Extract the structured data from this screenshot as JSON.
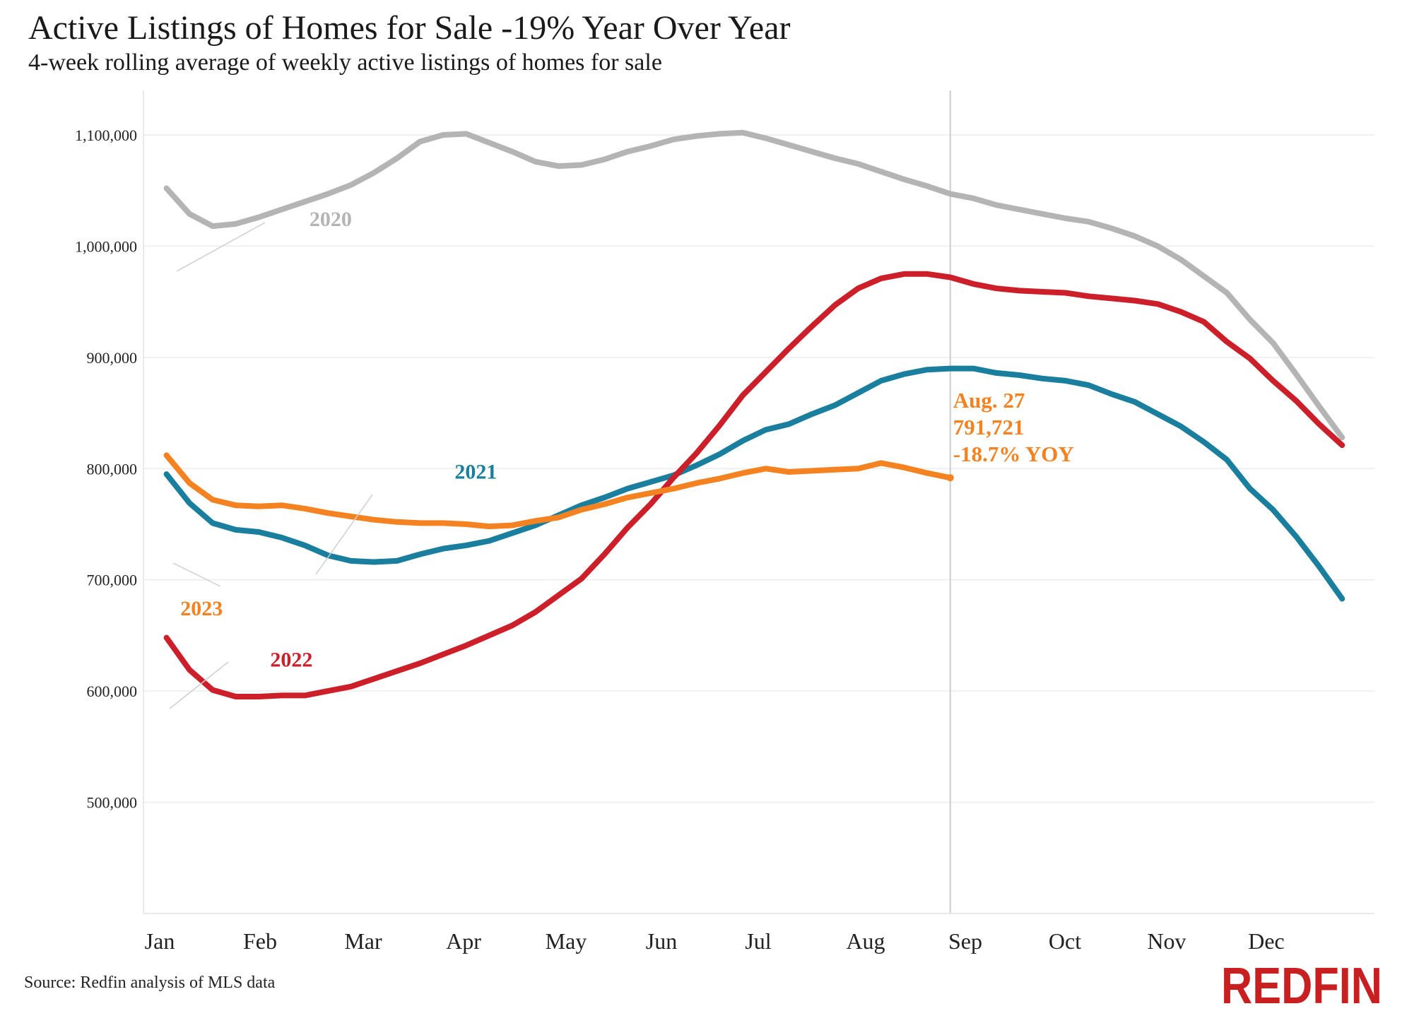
{
  "title": "Active Listings of Homes for Sale -19% Year Over Year",
  "subtitle": "4-week rolling average of weekly active listings of homes for sale",
  "source": "Source: Redfin analysis of MLS data",
  "logo": "REDFIN",
  "chart_data": {
    "type": "line",
    "y_ticks": [
      500000,
      600000,
      700000,
      800000,
      900000,
      1000000,
      1100000
    ],
    "y_tick_labels": [
      "500,000",
      "600,000",
      "700,000",
      "800,000",
      "900,000",
      "1,000,000",
      "1,100,000"
    ],
    "ylim": [
      400000,
      1140000
    ],
    "x_tick_labels": [
      "Jan",
      "Feb",
      "Mar",
      "Apr",
      "May",
      "Jun",
      "Jul",
      "Aug",
      "Sep",
      "Oct",
      "Nov",
      "Dec"
    ],
    "x_unit": "week of year",
    "xlim": [
      0,
      53.4
    ],
    "grid": true,
    "series": [
      {
        "name": "2020",
        "color": "#b4b4b4",
        "x": [
          1,
          2,
          3,
          4,
          5,
          6,
          7,
          8,
          9,
          10,
          11,
          12,
          13,
          14,
          15,
          16,
          17,
          18,
          19,
          20,
          21,
          22,
          23,
          24,
          25,
          26,
          27,
          28,
          29,
          30,
          31,
          32,
          33,
          34,
          35,
          36,
          37,
          38,
          39,
          40,
          41,
          42,
          43,
          44,
          45,
          46,
          47,
          48,
          49,
          50,
          51,
          52
        ],
        "values": [
          1052000,
          1029000,
          1018000,
          1020000,
          1026000,
          1033000,
          1040000,
          1047000,
          1055000,
          1066000,
          1079000,
          1094000,
          1100000,
          1101000,
          1093000,
          1085000,
          1076000,
          1072000,
          1073000,
          1078000,
          1085000,
          1090000,
          1096000,
          1099000,
          1101000,
          1102000,
          1097000,
          1091000,
          1085000,
          1079000,
          1074000,
          1067000,
          1060000,
          1054000,
          1047000,
          1043000,
          1037000,
          1033000,
          1029000,
          1025000,
          1022000,
          1016000,
          1009000,
          1000000,
          988000,
          973000,
          958000,
          934000,
          913000,
          885000,
          856000,
          828000
        ]
      },
      {
        "name": "2021",
        "color": "#1a7f9e",
        "x": [
          1,
          2,
          3,
          4,
          5,
          6,
          7,
          8,
          9,
          10,
          11,
          12,
          13,
          14,
          15,
          16,
          17,
          18,
          19,
          20,
          21,
          22,
          23,
          24,
          25,
          26,
          27,
          28,
          29,
          30,
          31,
          32,
          33,
          34,
          35,
          36,
          37,
          38,
          39,
          40,
          41,
          42,
          43,
          44,
          45,
          46,
          47,
          48,
          49,
          50,
          51,
          52
        ],
        "values": [
          795000,
          769000,
          751000,
          745000,
          743000,
          738000,
          731000,
          722000,
          717000,
          716000,
          717000,
          723000,
          728000,
          731000,
          735000,
          742000,
          749000,
          758000,
          767000,
          774000,
          782000,
          788000,
          794000,
          803000,
          813000,
          825000,
          835000,
          840000,
          849000,
          857000,
          868000,
          879000,
          885000,
          889000,
          890000,
          890000,
          886000,
          884000,
          881000,
          879000,
          875000,
          867000,
          860000,
          849000,
          838000,
          824000,
          808000,
          782000,
          763000,
          739000,
          712000,
          683000
        ]
      },
      {
        "name": "2022",
        "color": "#cc1f2a",
        "x": [
          1,
          2,
          3,
          4,
          5,
          6,
          7,
          8,
          9,
          10,
          11,
          12,
          13,
          14,
          15,
          16,
          17,
          18,
          19,
          20,
          21,
          22,
          23,
          24,
          25,
          26,
          27,
          28,
          29,
          30,
          31,
          32,
          33,
          34,
          35,
          36,
          37,
          38,
          39,
          40,
          41,
          42,
          43,
          44,
          45,
          46,
          47,
          48,
          49,
          50,
          51,
          52
        ],
        "values": [
          648000,
          619000,
          601000,
          595000,
          595000,
          596000,
          596000,
          600000,
          604000,
          611000,
          618000,
          625000,
          633000,
          641000,
          650000,
          659000,
          671000,
          686000,
          701000,
          723000,
          747000,
          768000,
          792000,
          814000,
          839000,
          866000,
          887000,
          908000,
          928000,
          947000,
          962000,
          971000,
          975000,
          975000,
          972000,
          966000,
          962000,
          960000,
          959000,
          958000,
          955000,
          953000,
          951000,
          948000,
          941000,
          932000,
          914000,
          899000,
          879000,
          861000,
          840000,
          821000
        ]
      },
      {
        "name": "2023",
        "color": "#f58220",
        "x": [
          1,
          2,
          3,
          4,
          5,
          6,
          7,
          8,
          9,
          10,
          11,
          12,
          13,
          14,
          15,
          16,
          17,
          18,
          19,
          20,
          21,
          22,
          23,
          24,
          25,
          26,
          27,
          28,
          29,
          30,
          31,
          32,
          33,
          34,
          35
        ],
        "values": [
          812000,
          787000,
          772000,
          767000,
          766000,
          767000,
          764000,
          760000,
          757000,
          754000,
          752000,
          751000,
          751000,
          750000,
          748000,
          749000,
          753000,
          756000,
          763000,
          768000,
          774000,
          778000,
          782000,
          787000,
          791000,
          796000,
          800000,
          797000,
          798000,
          799000,
          800000,
          805000,
          801000,
          796000,
          791721
        ]
      }
    ],
    "series_labels": [
      {
        "series": "2020",
        "text": "2020",
        "at": [
          7.2,
          1018000
        ]
      },
      {
        "series": "2021",
        "text": "2021",
        "at": [
          13.5,
          791000
        ]
      },
      {
        "series": "2022",
        "text": "2022",
        "at": [
          5.5,
          622000
        ]
      },
      {
        "series": "2023",
        "text": "2023",
        "at": [
          1.6,
          668000
        ]
      }
    ],
    "reference_line": {
      "x": 35
    },
    "annotation": {
      "lines": [
        "Aug. 27",
        "791,721",
        "-18.7% YOY"
      ],
      "color": "#f58220"
    }
  }
}
